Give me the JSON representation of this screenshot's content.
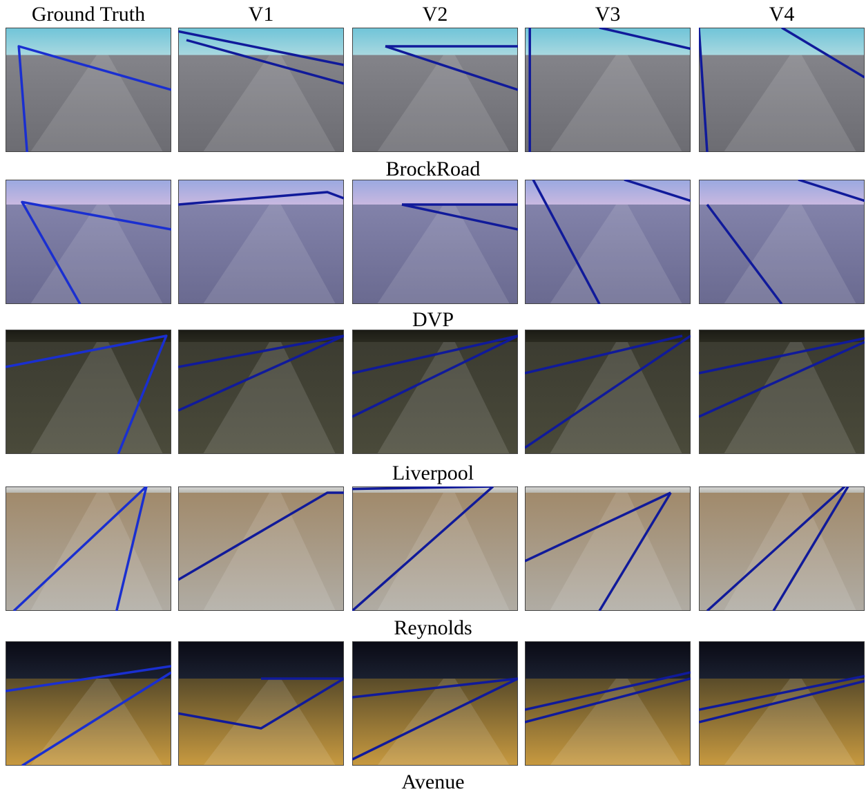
{
  "headers": [
    "Ground Truth",
    "V1",
    "V2",
    "V3",
    "V4"
  ],
  "rows": [
    {
      "label": "BrockRoad"
    },
    {
      "label": "DVP"
    },
    {
      "label": "Liverpool"
    },
    {
      "label": "Reynolds"
    },
    {
      "label": "Avenue"
    }
  ]
}
